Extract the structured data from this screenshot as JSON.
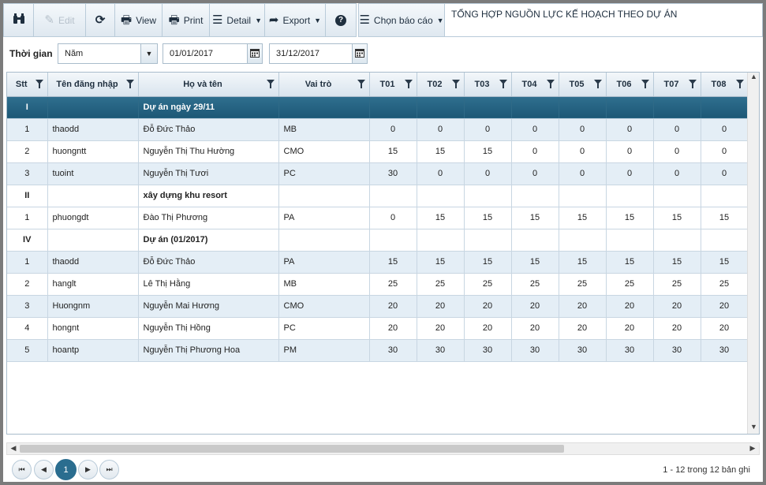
{
  "toolbar": {
    "edit": "Edit",
    "view": "View",
    "print": "Print",
    "detail": "Detail",
    "export": "Export",
    "choose_report": "Chọn báo cáo",
    "report_title": "TỔNG HỢP NGUỒN LỰC KẾ HOẠCH THEO DỰ ÁN"
  },
  "filter": {
    "label": "Thời gian",
    "period": "Năm",
    "from_date": "01/01/2017",
    "to_date": "31/12/2017"
  },
  "grid": {
    "headers": [
      "Stt",
      "Tên đăng nhập",
      "Họ và tên",
      "Vai trò",
      "T01",
      "T02",
      "T03",
      "T04",
      "T05",
      "T06",
      "T07",
      "T08"
    ],
    "rows": [
      {
        "type": "group",
        "stt": "I",
        "name": "Dự án ngày 29/11",
        "selected": true
      },
      {
        "type": "row",
        "stt": "1",
        "user": "thaodd",
        "name": "Đỗ Đức Thảo",
        "role": "MB",
        "months": [
          "0",
          "0",
          "0",
          "0",
          "0",
          "0",
          "0",
          "0"
        ]
      },
      {
        "type": "row",
        "stt": "2",
        "user": "huongntt",
        "name": "Nguyễn Thị Thu Hường",
        "role": "CMO",
        "months": [
          "15",
          "15",
          "15",
          "0",
          "0",
          "0",
          "0",
          "0"
        ]
      },
      {
        "type": "row",
        "stt": "3",
        "user": "tuoint",
        "name": "Nguyễn Thị Tươi",
        "role": "PC",
        "months": [
          "30",
          "0",
          "0",
          "0",
          "0",
          "0",
          "0",
          "0"
        ]
      },
      {
        "type": "group",
        "stt": "II",
        "name": "xây dựng khu resort",
        "selected": false
      },
      {
        "type": "row",
        "stt": "1",
        "user": "phuongdt",
        "name": "Đào Thị Phương",
        "role": "PA",
        "months": [
          "0",
          "15",
          "15",
          "15",
          "15",
          "15",
          "15",
          "15"
        ]
      },
      {
        "type": "group",
        "stt": "IV",
        "name": "Dự án (01/2017)",
        "selected": false
      },
      {
        "type": "row",
        "stt": "1",
        "user": "thaodd",
        "name": "Đỗ Đức Thảo",
        "role": "PA",
        "months": [
          "15",
          "15",
          "15",
          "15",
          "15",
          "15",
          "15",
          "15"
        ]
      },
      {
        "type": "row",
        "stt": "2",
        "user": "hanglt",
        "name": "Lê Thị Hằng",
        "role": "MB",
        "months": [
          "25",
          "25",
          "25",
          "25",
          "25",
          "25",
          "25",
          "25"
        ]
      },
      {
        "type": "row",
        "stt": "3",
        "user": "Huongnm",
        "name": "Nguyễn Mai Hương",
        "role": "CMO",
        "months": [
          "20",
          "20",
          "20",
          "20",
          "20",
          "20",
          "20",
          "20"
        ]
      },
      {
        "type": "row",
        "stt": "4",
        "user": "hongnt",
        "name": "Nguyễn Thị Hồng",
        "role": "PC",
        "months": [
          "20",
          "20",
          "20",
          "20",
          "20",
          "20",
          "20",
          "20"
        ]
      },
      {
        "type": "row",
        "stt": "5",
        "user": "hoantp",
        "name": "Nguyễn Thị Phương Hoa",
        "role": "PM",
        "months": [
          "30",
          "30",
          "30",
          "30",
          "30",
          "30",
          "30",
          "30"
        ]
      }
    ]
  },
  "pager": {
    "current_page": "1",
    "info": "1 - 12 trong 12 bản ghi"
  },
  "colors": {
    "selected_row": "#1d5775",
    "alt_row": "#e4eef6",
    "active_page": "#2a6d8f"
  },
  "icons": [
    "binoculars-icon",
    "edit-icon",
    "refresh-icon",
    "view-printer-icon",
    "print-icon",
    "list-icon",
    "export-arrow-icon",
    "help-icon",
    "menu-icon",
    "calendar-icon",
    "filter-funnel-icon"
  ]
}
